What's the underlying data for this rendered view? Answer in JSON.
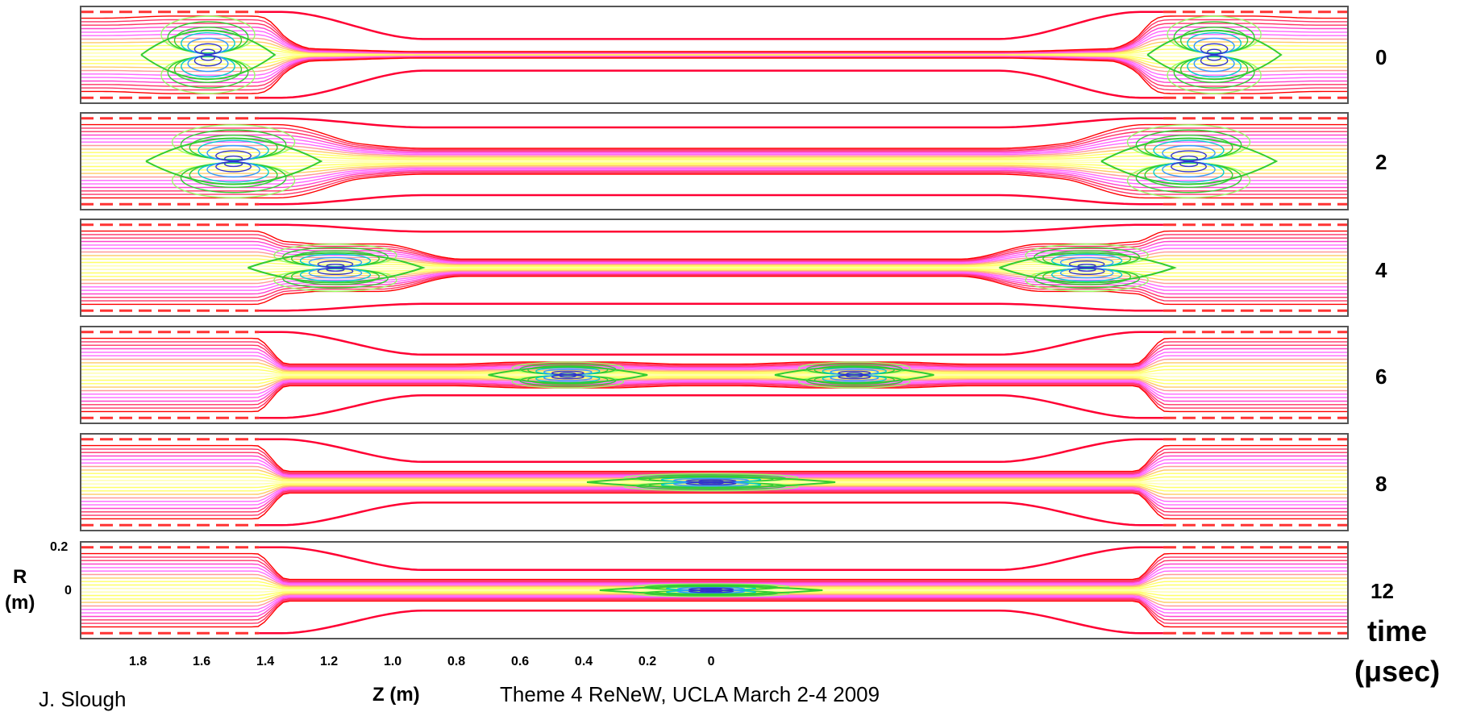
{
  "chart_data": {
    "type": "contour",
    "panels": [
      {
        "time": "0",
        "o_points": [
          1.58,
          -1.58
        ],
        "o_length": [
          0.42,
          0.42
        ],
        "o_radius": [
          0.18,
          0.18
        ],
        "mid_radius": 0.015,
        "pinch_radius": 0.03
      },
      {
        "time": "2",
        "o_points": [
          1.5,
          -1.5
        ],
        "o_length": [
          0.55,
          0.55
        ],
        "o_radius": [
          0.17,
          0.17
        ],
        "mid_radius": 0.06,
        "pinch_radius": 0.11
      },
      {
        "time": "4",
        "o_points": [
          1.18,
          -1.18
        ],
        "o_length": [
          0.55,
          0.55
        ],
        "o_radius": [
          0.11,
          0.11
        ],
        "mid_radius": 0.04,
        "pinch_radius": 0.12
      },
      {
        "time": "6",
        "o_points": [
          0.45,
          -0.45
        ],
        "o_length": [
          0.5,
          0.5
        ],
        "o_radius": [
          0.06,
          0.06
        ],
        "mid_radius": 0.05,
        "pinch_radius": 0.05
      },
      {
        "time": "8",
        "o_points": [
          0.0
        ],
        "o_length": [
          0.78
        ],
        "o_radius": [
          0.04
        ],
        "mid_radius": 0.05,
        "pinch_radius": 0.05
      },
      {
        "time": "12",
        "o_points": [
          0.0
        ],
        "o_length": [
          0.7
        ],
        "o_radius": [
          0.03
        ],
        "mid_radius": 0.05,
        "pinch_radius": 0.05
      }
    ],
    "x_ticks": [
      "1.8",
      "1.6",
      "1.4",
      "1.2",
      "1.0",
      "0.8",
      "0.6",
      "0.4",
      "0.2",
      "0"
    ],
    "x_tick_values": [
      1.8,
      1.6,
      1.4,
      1.2,
      1.0,
      0.8,
      0.6,
      0.4,
      0.2,
      0.0
    ],
    "xlim": [
      1.98,
      -2.0
    ],
    "xlabel": "Z (m)",
    "ylabel": "R\n(m)",
    "y_ticks": [
      "0.2",
      "0"
    ],
    "ylim": [
      -0.2,
      0.2
    ],
    "time_label": "time\n(μsec)",
    "coil_edges": [
      1.38,
      -1.38
    ],
    "coil_radius": 0.19,
    "colors": [
      "#ff0000",
      "#ff3366",
      "#ff44cc",
      "#ff66ff",
      "#ff9999",
      "#ffcc66",
      "#ffff66",
      "#ffffaa",
      "#99ff66",
      "#33cc33",
      "#00cccc",
      "#3399ff",
      "#3333cc",
      "#000099"
    ]
  },
  "footer": {
    "left": "J. Slough",
    "right": "Theme 4 ReNeW, UCLA March 2-4 2009"
  }
}
